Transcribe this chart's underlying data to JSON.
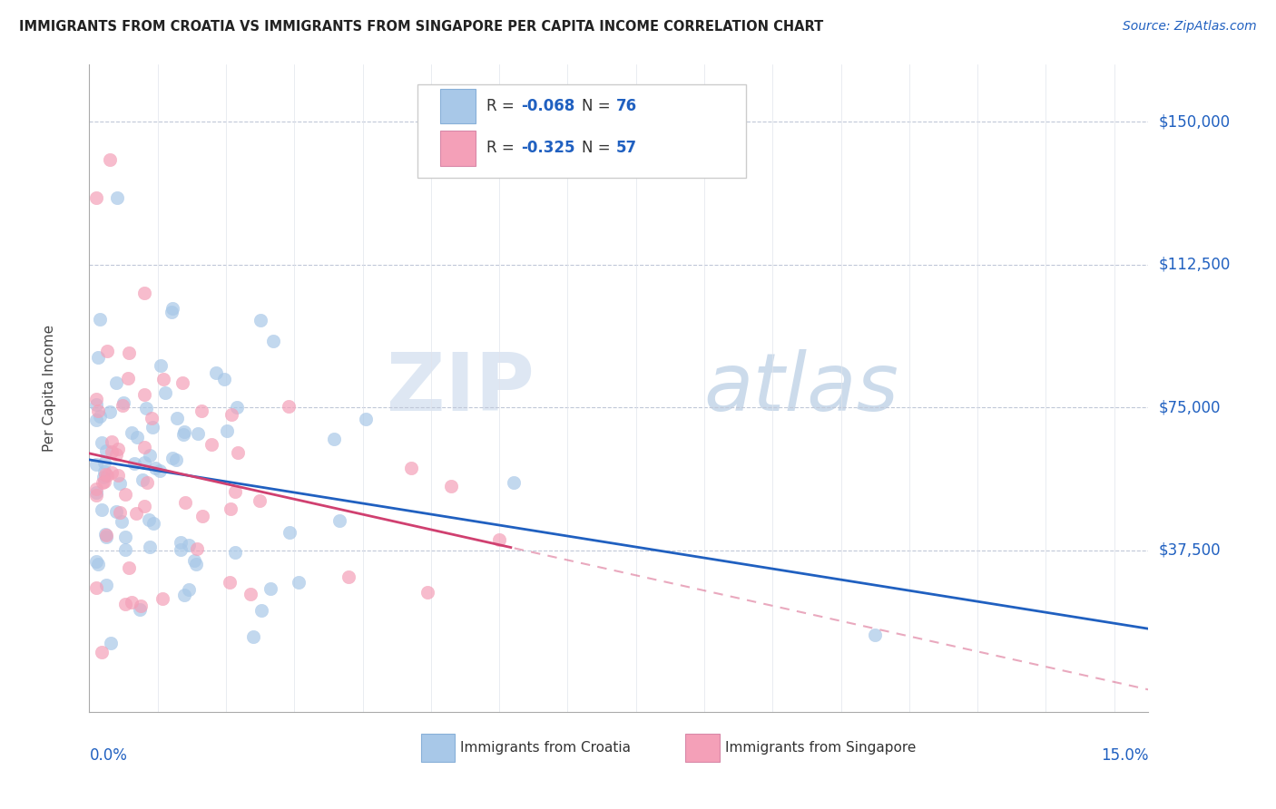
{
  "title": "IMMIGRANTS FROM CROATIA VS IMMIGRANTS FROM SINGAPORE PER CAPITA INCOME CORRELATION CHART",
  "source": "Source: ZipAtlas.com",
  "ylabel": "Per Capita Income",
  "color_croatia": "#a8c8e8",
  "color_singapore": "#f4a0b8",
  "line_color_croatia": "#2060c0",
  "line_color_singapore": "#d04070",
  "watermark_zip": "ZIP",
  "watermark_atlas": "atlas",
  "background_color": "#ffffff",
  "xlim": [
    0.0,
    0.155
  ],
  "ylim": [
    -5000,
    165000
  ],
  "ytick_vals": [
    37500,
    75000,
    112500,
    150000
  ],
  "ytick_labels": [
    "$37,500",
    "$75,000",
    "$112,500",
    "$150,000"
  ],
  "legend_text": [
    [
      "R = ",
      "-0.068",
      "  N = ",
      "76"
    ],
    [
      "R = ",
      "-0.325",
      "  N = ",
      "57"
    ]
  ],
  "r_color": "#2060c0",
  "n_color": "#2060c0",
  "seed_croatia": 101,
  "seed_singapore": 202,
  "n_croatia": 76,
  "n_singapore": 57
}
